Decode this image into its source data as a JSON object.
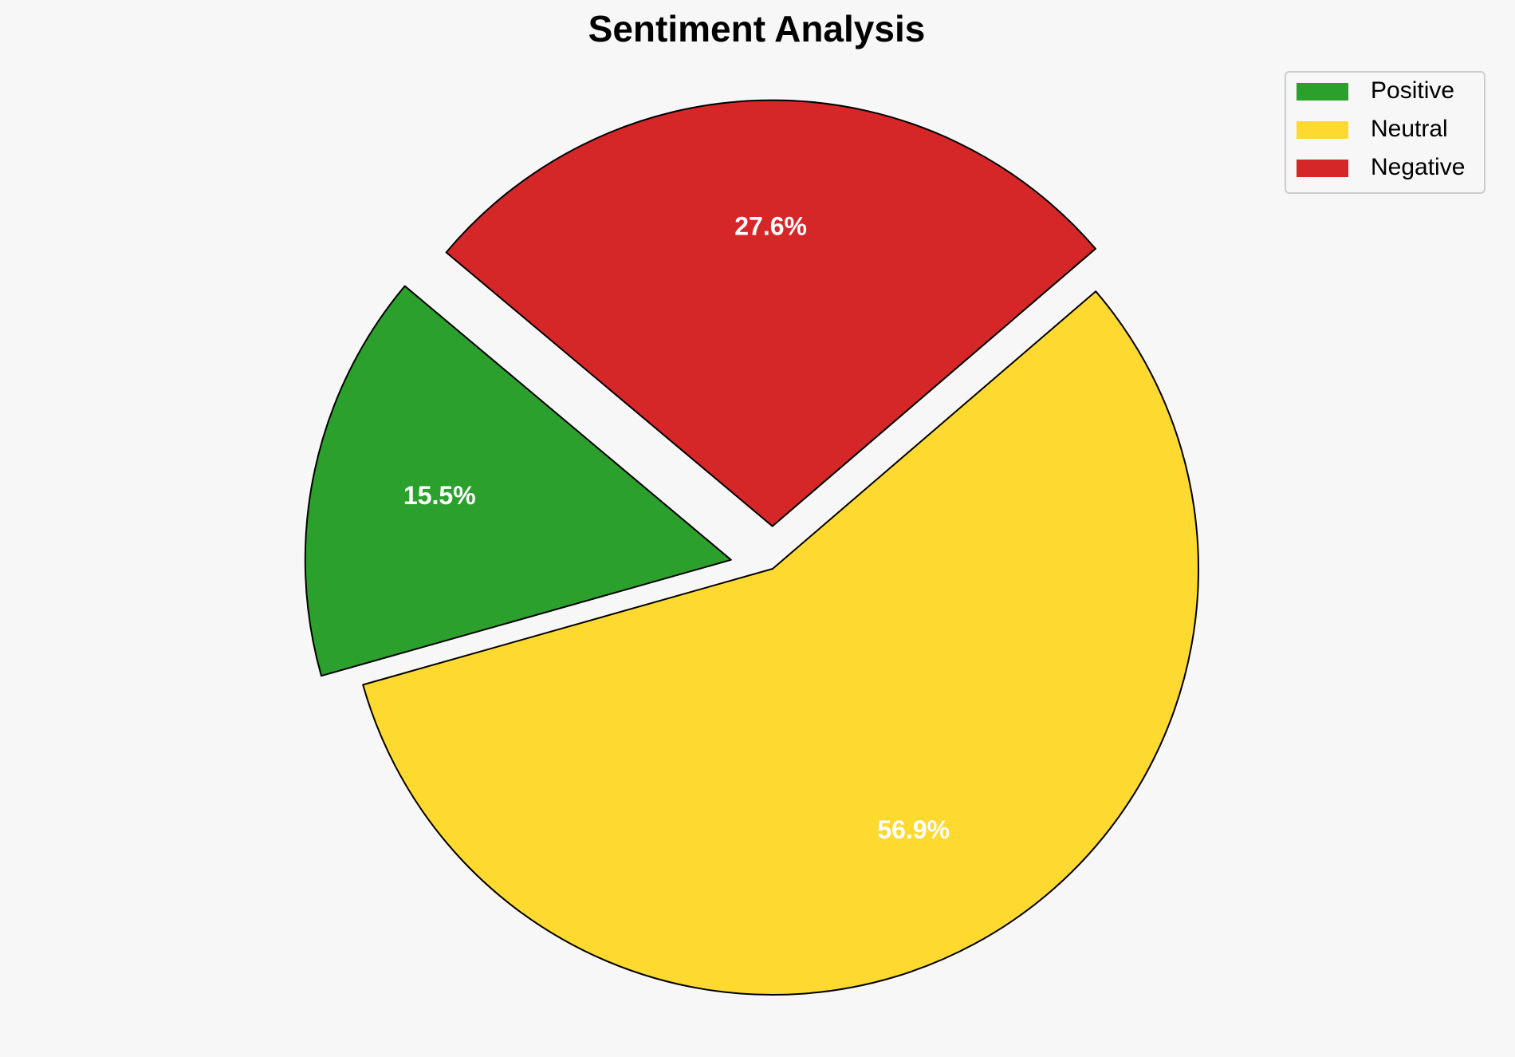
{
  "chart_data": {
    "type": "pie",
    "title": "Sentiment Analysis",
    "categories": [
      "Positive",
      "Neutral",
      "Negative"
    ],
    "values": [
      15.5,
      56.9,
      27.6
    ],
    "value_labels": [
      "15.5%",
      "56.9%",
      "27.6%"
    ],
    "colors": [
      "#2ca02c",
      "#fed930",
      "#d62728"
    ],
    "explode": [
      0.1,
      0,
      0.1
    ],
    "start_angle": 140,
    "legend": "upper right"
  }
}
